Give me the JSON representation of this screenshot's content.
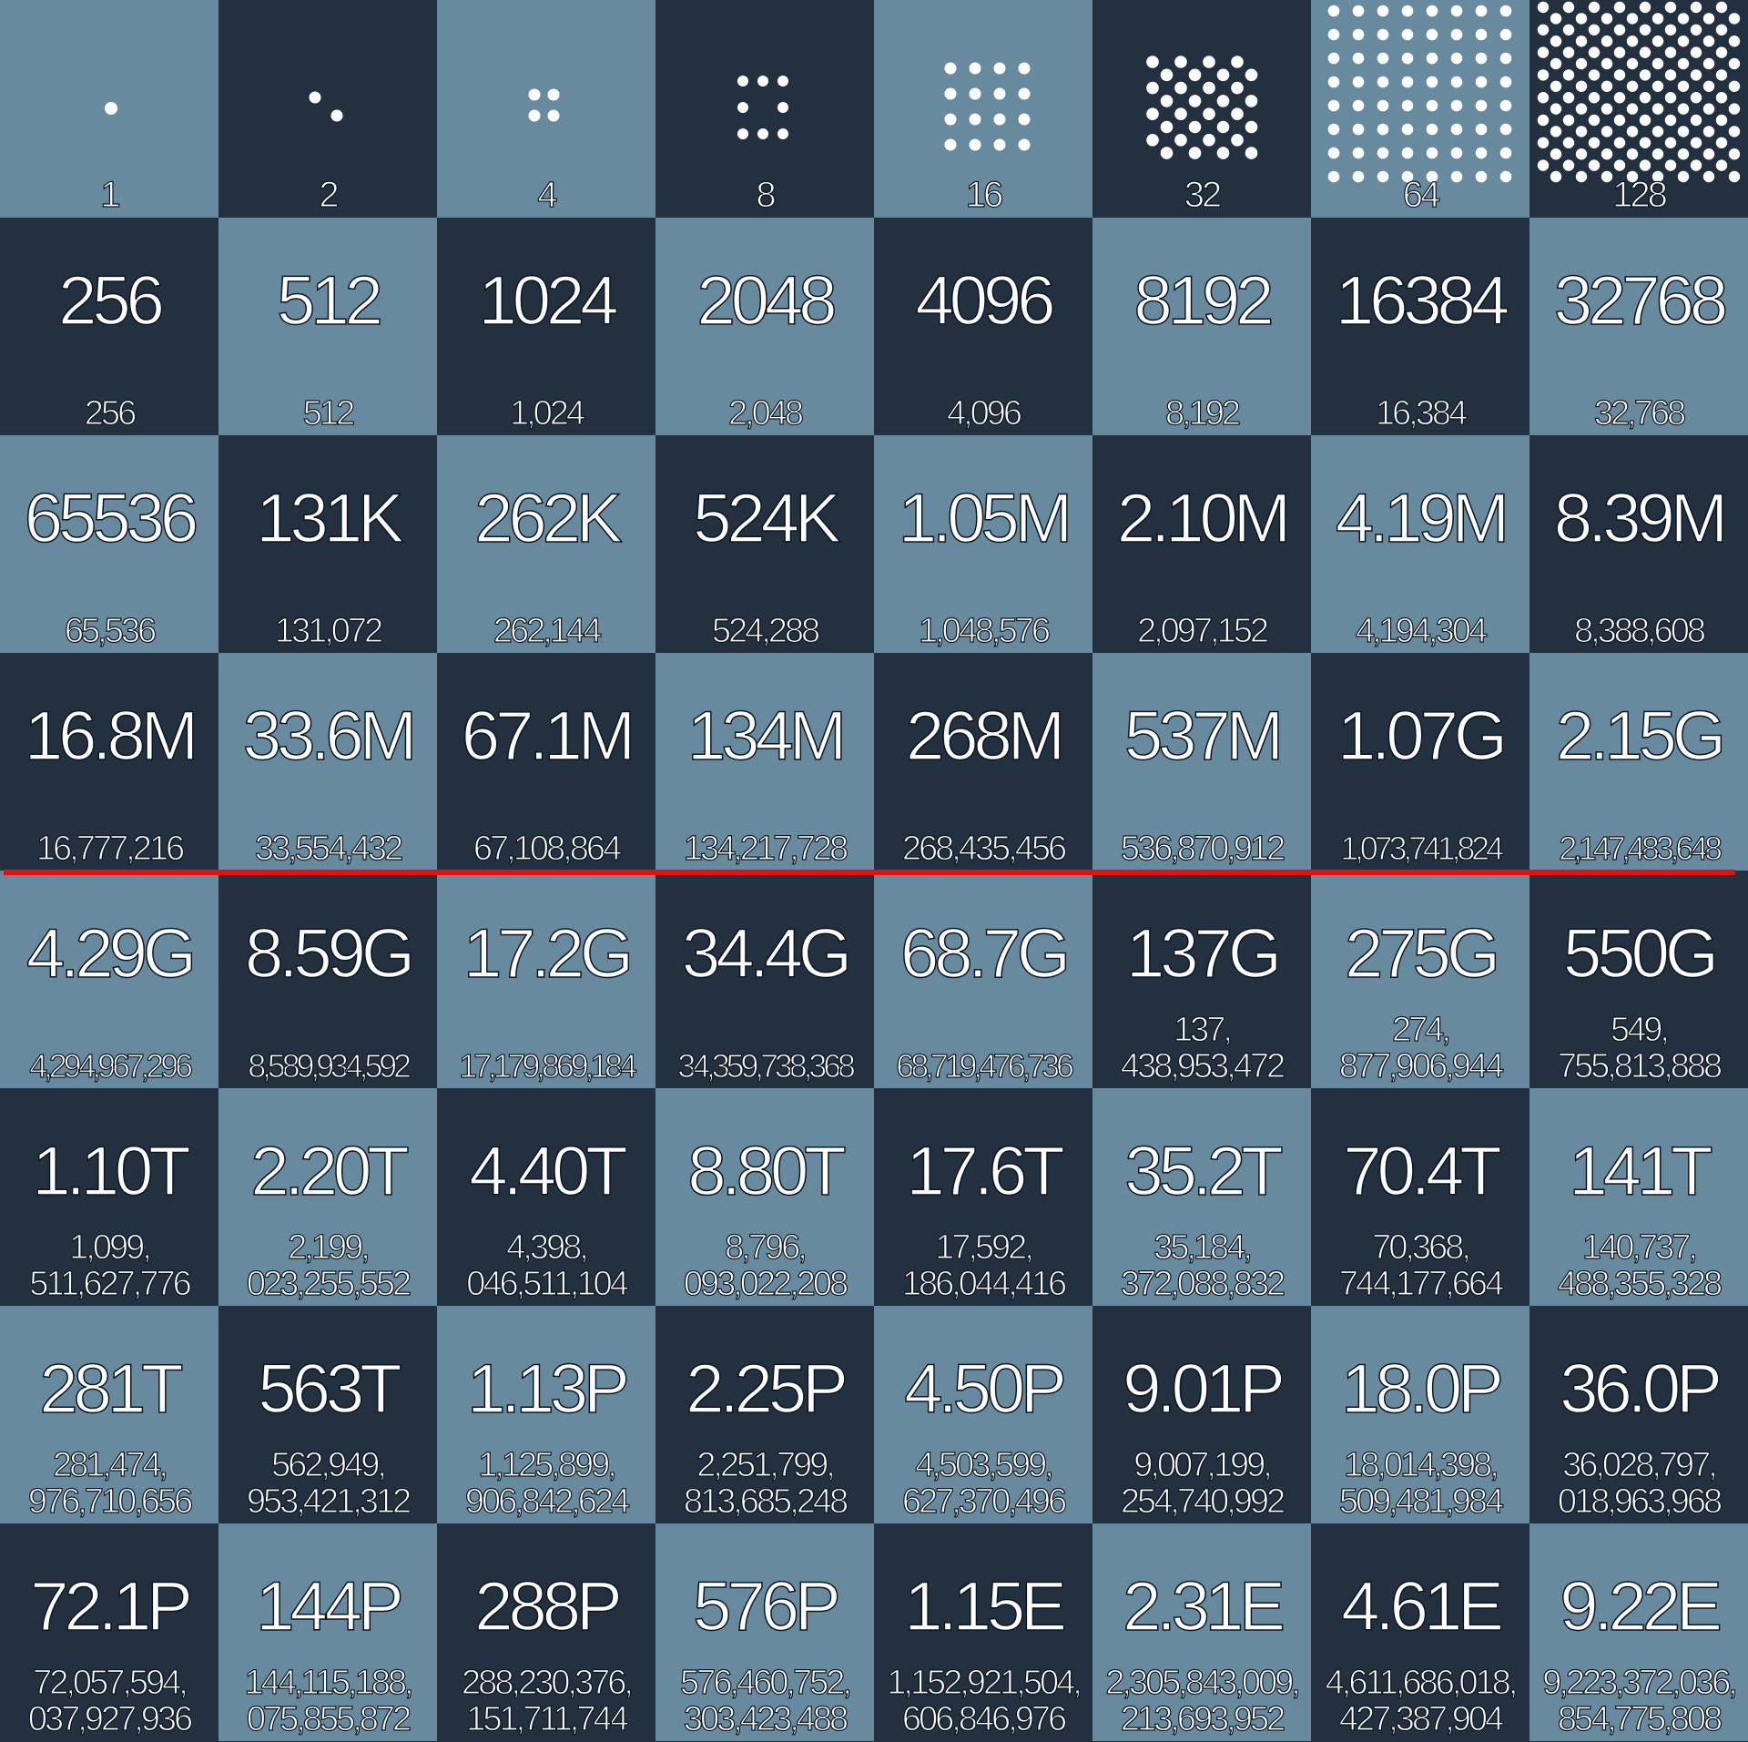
{
  "colors": {
    "light_tile": "#688a9e",
    "dark_tile": "#22303f",
    "text": "#ffffff",
    "outline": "#0d1620",
    "divider": "#e41111"
  },
  "cells": [
    {
      "dots": 1,
      "label": "1"
    },
    {
      "dots": 2,
      "label": "2"
    },
    {
      "dots": 4,
      "label": "4"
    },
    {
      "dots": 8,
      "label": "8"
    },
    {
      "dots": 16,
      "label": "16"
    },
    {
      "dots": 32,
      "label": "32"
    },
    {
      "dots": 64,
      "label": "64"
    },
    {
      "dots": 128,
      "label": "128"
    },
    {
      "big": "256",
      "small": "256"
    },
    {
      "big": "512",
      "small": "512"
    },
    {
      "big": "1024",
      "small": "1,024"
    },
    {
      "big": "2048",
      "small": "2,048"
    },
    {
      "big": "4096",
      "small": "4,096"
    },
    {
      "big": "8192",
      "small": "8,192"
    },
    {
      "big": "16384",
      "small": "16,384"
    },
    {
      "big": "32768",
      "small": "32,768"
    },
    {
      "big": "65536",
      "small": "65,536"
    },
    {
      "big": "131K",
      "small": "131,072"
    },
    {
      "big": "262K",
      "small": "262,144"
    },
    {
      "big": "524K",
      "small": "524,288"
    },
    {
      "big": "1.05M",
      "small": "1,048,576"
    },
    {
      "big": "2.10M",
      "small": "2,097,152"
    },
    {
      "big": "4.19M",
      "small": "4,194,304"
    },
    {
      "big": "8.39M",
      "small": "8,388,608"
    },
    {
      "big": "16.8M",
      "small": "16,777,216"
    },
    {
      "big": "33.6M",
      "small": "33,554,432"
    },
    {
      "big": "67.1M",
      "small": "67,108,864"
    },
    {
      "big": "134M",
      "small": "134,217,728"
    },
    {
      "big": "268M",
      "small": "268,435,456"
    },
    {
      "big": "537M",
      "small": "536,870,912"
    },
    {
      "big": "1.07G",
      "small": "1,073,741,824"
    },
    {
      "big": "2.15G",
      "small": "2,147,483,648"
    },
    {
      "big": "4.29G",
      "small": "4,294,967,296"
    },
    {
      "big": "8.59G",
      "small": "8,589,934,592"
    },
    {
      "big": "17.2G",
      "small": "17,179,869,184"
    },
    {
      "big": "34.4G",
      "small": "34,359,738,368"
    },
    {
      "big": "68.7G",
      "small": "68,719,476,736"
    },
    {
      "big": "137G",
      "small": "137,\n438,953,472"
    },
    {
      "big": "275G",
      "small": "274,\n877,906,944"
    },
    {
      "big": "550G",
      "small": "549,\n755,813,888"
    },
    {
      "big": "1.10T",
      "small": "1,099,\n511,627,776"
    },
    {
      "big": "2.20T",
      "small": "2,199,\n023,255,552"
    },
    {
      "big": "4.40T",
      "small": "4,398,\n046,511,104"
    },
    {
      "big": "8.80T",
      "small": "8,796,\n093,022,208"
    },
    {
      "big": "17.6T",
      "small": "17,592,\n186,044,416"
    },
    {
      "big": "35.2T",
      "small": "35,184,\n372,088,832"
    },
    {
      "big": "70.4T",
      "small": "70,368,\n744,177,664"
    },
    {
      "big": "141T",
      "small": "140,737,\n488,355,328"
    },
    {
      "big": "281T",
      "small": "281,474,\n976,710,656"
    },
    {
      "big": "563T",
      "small": "562,949,\n953,421,312"
    },
    {
      "big": "1.13P",
      "small": "1,125,899,\n906,842,624"
    },
    {
      "big": "2.25P",
      "small": "2,251,799,\n813,685,248"
    },
    {
      "big": "4.50P",
      "small": "4,503,599,\n627,370,496"
    },
    {
      "big": "9.01P",
      "small": "9,007,199,\n254,740,992"
    },
    {
      "big": "18.0P",
      "small": "18,014,398,\n509,481,984"
    },
    {
      "big": "36.0P",
      "small": "36,028,797,\n018,963,968"
    },
    {
      "big": "72.1P",
      "small": "72,057,594,\n037,927,936"
    },
    {
      "big": "144P",
      "small": "144,115,188,\n075,855,872"
    },
    {
      "big": "288P",
      "small": "288,230,376,\n151,711,744"
    },
    {
      "big": "576P",
      "small": "576,460,752,\n303,423,488"
    },
    {
      "big": "1.15E",
      "small": "1,152,921,504,\n606,846,976"
    },
    {
      "big": "2.31E",
      "small": "2,305,843,009,\n213,693,952"
    },
    {
      "big": "4.61E",
      "small": "4,611,686,018,\n427,387,904"
    },
    {
      "big": "9.22E",
      "small": "9,223,372,036,\n854,775,808"
    }
  ]
}
